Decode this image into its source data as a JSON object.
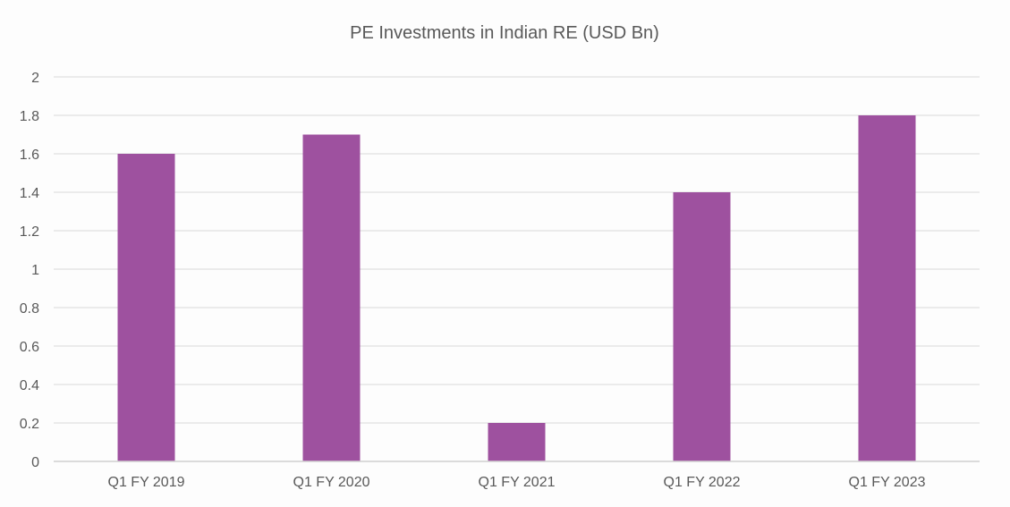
{
  "chart_data": {
    "type": "bar",
    "title": "PE Investments in Indian RE (USD Bn)",
    "xlabel": "",
    "ylabel": "",
    "categories": [
      "Q1 FY 2019",
      "Q1 FY 2020",
      "Q1 FY 2021",
      "Q1 FY 2022",
      "Q1 FY 2023"
    ],
    "values": [
      1.6,
      1.7,
      0.2,
      1.4,
      1.8
    ],
    "ylim": [
      0,
      2
    ],
    "yticks": [
      "0",
      "0.2",
      "0.4",
      "0.6",
      "0.8",
      "1",
      "1.2",
      "1.4",
      "1.6",
      "1.8",
      "2"
    ],
    "grid": true,
    "legend": "none",
    "bar_color": "#9e519f"
  }
}
